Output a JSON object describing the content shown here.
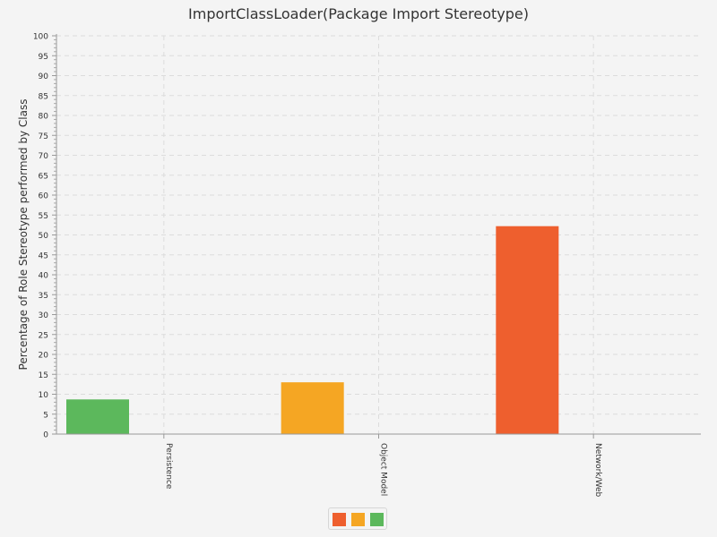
{
  "chart_data": {
    "type": "bar",
    "title": "ImportClassLoader(Package Import Stereotype)",
    "xlabel": "",
    "ylabel": "Percentage of Role Stereotype performed by Class",
    "categories": [
      "Persistence",
      "Object Model",
      "Network/Web"
    ],
    "values": [
      8.7,
      13.0,
      52.2
    ],
    "bar_colors": [
      "#5cb85c",
      "#f5a623",
      "#ee5f2e"
    ],
    "ylim": [
      0,
      100
    ],
    "y_major_step": 5,
    "y_minor_step": 1,
    "grid": true,
    "legend": {
      "placement": "bottom-center",
      "swatch_colors": [
        "#ee5f2e",
        "#f5a623",
        "#5cb85c"
      ]
    }
  }
}
